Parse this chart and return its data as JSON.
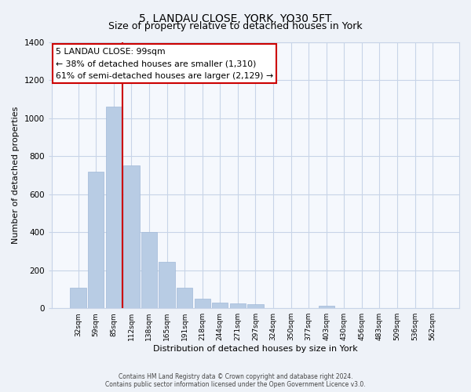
{
  "title": "5, LANDAU CLOSE, YORK, YO30 5FT",
  "subtitle": "Size of property relative to detached houses in York",
  "xlabel": "Distribution of detached houses by size in York",
  "ylabel": "Number of detached properties",
  "categories": [
    "32sqm",
    "59sqm",
    "85sqm",
    "112sqm",
    "138sqm",
    "165sqm",
    "191sqm",
    "218sqm",
    "244sqm",
    "271sqm",
    "297sqm",
    "324sqm",
    "350sqm",
    "377sqm",
    "403sqm",
    "430sqm",
    "456sqm",
    "483sqm",
    "509sqm",
    "536sqm",
    "562sqm"
  ],
  "values": [
    110,
    720,
    1060,
    750,
    400,
    245,
    110,
    50,
    28,
    25,
    22,
    0,
    0,
    0,
    12,
    0,
    0,
    0,
    0,
    0,
    0
  ],
  "bar_color": "#b8cce4",
  "bar_edgecolor": "#a0b8d8",
  "vline_color": "#cc0000",
  "vline_pos": 2.5,
  "annotation_line1": "5 LANDAU CLOSE: 99sqm",
  "annotation_line2": "← 38% of detached houses are smaller (1,310)",
  "annotation_line3": "61% of semi-detached houses are larger (2,129) →",
  "annotation_box_edgecolor": "#cc0000",
  "ylim": [
    0,
    1400
  ],
  "yticks": [
    0,
    200,
    400,
    600,
    800,
    1000,
    1200,
    1400
  ],
  "footer": "Contains HM Land Registry data © Crown copyright and database right 2024.\nContains public sector information licensed under the Open Government Licence v3.0.",
  "background_color": "#eef2f8",
  "plot_background_color": "#f5f8fd",
  "grid_color": "#c8d4e8",
  "title_fontsize": 10,
  "subtitle_fontsize": 9
}
